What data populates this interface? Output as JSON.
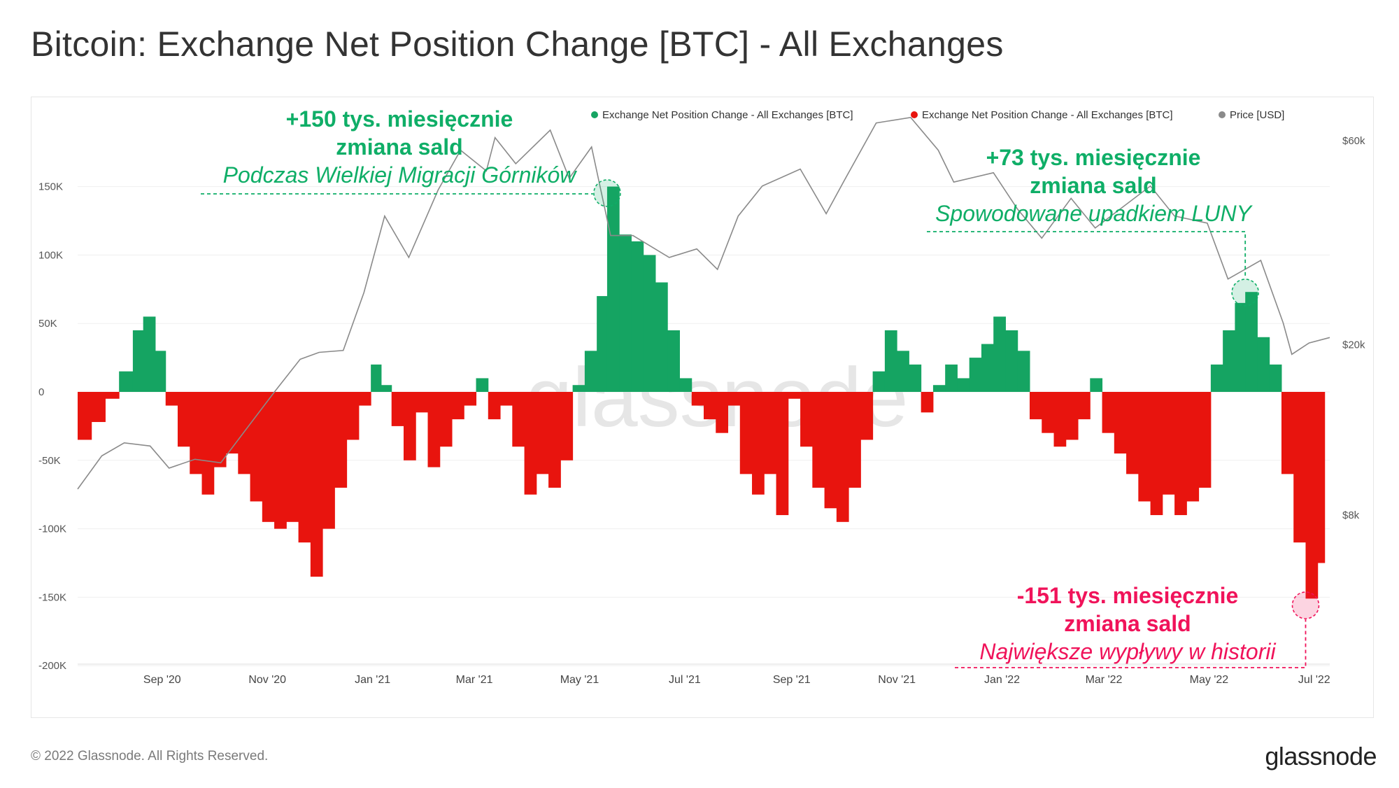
{
  "title": "Bitcoin: Exchange Net Position Change [BTC] - All Exchanges",
  "footer": {
    "copyright": "© 2022 Glassnode. All Rights Reserved.",
    "brand": "glassnode"
  },
  "watermark": "glassnode",
  "colors": {
    "positive": "#15a462",
    "negative": "#e8140e",
    "price": "#8a8a8a",
    "annot_green": "#0fae67",
    "annot_pink": "#f0135a"
  },
  "chart_data": {
    "type": "bar",
    "legend": [
      {
        "label": "Exchange Net Position Change - All Exchanges [BTC]",
        "color": "#15a462"
      },
      {
        "label": "Exchange Net Position Change - All Exchanges [BTC]",
        "color": "#e8140e"
      },
      {
        "label": "Price [USD]",
        "color": "#8a8a8a"
      }
    ],
    "legend_position": "top-right",
    "y_left": {
      "ticks": [
        "150K",
        "100K",
        "50K",
        "0",
        "-50K",
        "-100K",
        "-150K",
        "-200K"
      ],
      "values": [
        150000,
        100000,
        50000,
        0,
        -50000,
        -100000,
        -150000,
        -200000
      ],
      "range": [
        -200000,
        200000
      ]
    },
    "y_right": {
      "ticks": [
        "$60k",
        "$20k",
        "$8k"
      ],
      "values": [
        60000,
        20000,
        8000
      ],
      "scale": "log"
    },
    "x_ticks": [
      "Sep '20",
      "Nov '20",
      "Jan '21",
      "Mar '21",
      "May '21",
      "Jul '21",
      "Sep '21",
      "Nov '21",
      "Jan '22",
      "Mar '22",
      "May '22",
      "Jul '22"
    ],
    "x_range": [
      "2020-07-14",
      "2022-07-10"
    ],
    "series": [
      {
        "name": "Exchange Net Position Change - All Exchanges [BTC]",
        "type": "bar",
        "points": [
          [
            "2020-07-14",
            -35000
          ],
          [
            "2020-07-22",
            -22000
          ],
          [
            "2020-07-30",
            -5000
          ],
          [
            "2020-08-07",
            15000
          ],
          [
            "2020-08-15",
            45000
          ],
          [
            "2020-08-21",
            55000
          ],
          [
            "2020-08-28",
            30000
          ],
          [
            "2020-09-03",
            -10000
          ],
          [
            "2020-09-10",
            -40000
          ],
          [
            "2020-09-17",
            -60000
          ],
          [
            "2020-09-24",
            -75000
          ],
          [
            "2020-10-01",
            -55000
          ],
          [
            "2020-10-08",
            -45000
          ],
          [
            "2020-10-15",
            -60000
          ],
          [
            "2020-10-22",
            -80000
          ],
          [
            "2020-10-29",
            -95000
          ],
          [
            "2020-11-05",
            -100000
          ],
          [
            "2020-11-12",
            -95000
          ],
          [
            "2020-11-19",
            -110000
          ],
          [
            "2020-11-26",
            -135000
          ],
          [
            "2020-12-03",
            -100000
          ],
          [
            "2020-12-10",
            -70000
          ],
          [
            "2020-12-17",
            -35000
          ],
          [
            "2020-12-24",
            -10000
          ],
          [
            "2020-12-31",
            20000
          ],
          [
            "2021-01-06",
            5000
          ],
          [
            "2021-01-12",
            -25000
          ],
          [
            "2021-01-19",
            -50000
          ],
          [
            "2021-01-26",
            -15000
          ],
          [
            "2021-02-02",
            -55000
          ],
          [
            "2021-02-09",
            -40000
          ],
          [
            "2021-02-16",
            -20000
          ],
          [
            "2021-02-23",
            -10000
          ],
          [
            "2021-03-02",
            10000
          ],
          [
            "2021-03-09",
            -20000
          ],
          [
            "2021-03-16",
            -10000
          ],
          [
            "2021-03-23",
            -40000
          ],
          [
            "2021-03-30",
            -75000
          ],
          [
            "2021-04-06",
            -60000
          ],
          [
            "2021-04-13",
            -70000
          ],
          [
            "2021-04-20",
            -50000
          ],
          [
            "2021-04-27",
            5000
          ],
          [
            "2021-05-04",
            30000
          ],
          [
            "2021-05-11",
            70000
          ],
          [
            "2021-05-17",
            150000
          ],
          [
            "2021-05-24",
            115000
          ],
          [
            "2021-05-31",
            110000
          ],
          [
            "2021-06-07",
            100000
          ],
          [
            "2021-06-14",
            80000
          ],
          [
            "2021-06-21",
            45000
          ],
          [
            "2021-06-28",
            10000
          ],
          [
            "2021-07-05",
            -10000
          ],
          [
            "2021-07-12",
            -20000
          ],
          [
            "2021-07-19",
            -30000
          ],
          [
            "2021-07-26",
            -10000
          ],
          [
            "2021-08-02",
            -60000
          ],
          [
            "2021-08-09",
            -75000
          ],
          [
            "2021-08-16",
            -60000
          ],
          [
            "2021-08-23",
            -90000
          ],
          [
            "2021-08-30",
            -5000
          ],
          [
            "2021-09-06",
            -40000
          ],
          [
            "2021-09-13",
            -70000
          ],
          [
            "2021-09-20",
            -85000
          ],
          [
            "2021-09-27",
            -95000
          ],
          [
            "2021-10-04",
            -70000
          ],
          [
            "2021-10-11",
            -35000
          ],
          [
            "2021-10-18",
            15000
          ],
          [
            "2021-10-25",
            45000
          ],
          [
            "2021-11-01",
            30000
          ],
          [
            "2021-11-08",
            20000
          ],
          [
            "2021-11-15",
            -15000
          ],
          [
            "2021-11-22",
            5000
          ],
          [
            "2021-11-29",
            20000
          ],
          [
            "2021-12-06",
            10000
          ],
          [
            "2021-12-13",
            25000
          ],
          [
            "2021-12-20",
            35000
          ],
          [
            "2021-12-27",
            55000
          ],
          [
            "2022-01-03",
            45000
          ],
          [
            "2022-01-10",
            30000
          ],
          [
            "2022-01-17",
            -20000
          ],
          [
            "2022-01-24",
            -30000
          ],
          [
            "2022-01-31",
            -40000
          ],
          [
            "2022-02-07",
            -35000
          ],
          [
            "2022-02-14",
            -20000
          ],
          [
            "2022-02-21",
            10000
          ],
          [
            "2022-02-28",
            -30000
          ],
          [
            "2022-03-07",
            -45000
          ],
          [
            "2022-03-14",
            -60000
          ],
          [
            "2022-03-21",
            -80000
          ],
          [
            "2022-03-28",
            -90000
          ],
          [
            "2022-04-04",
            -75000
          ],
          [
            "2022-04-11",
            -90000
          ],
          [
            "2022-04-18",
            -80000
          ],
          [
            "2022-04-25",
            -70000
          ],
          [
            "2022-05-02",
            20000
          ],
          [
            "2022-05-09",
            45000
          ],
          [
            "2022-05-16",
            65000
          ],
          [
            "2022-05-22",
            73000
          ],
          [
            "2022-05-29",
            40000
          ],
          [
            "2022-06-05",
            20000
          ],
          [
            "2022-06-12",
            -60000
          ],
          [
            "2022-06-19",
            -110000
          ],
          [
            "2022-06-26",
            -151000
          ],
          [
            "2022-07-03",
            -125000
          ]
        ]
      },
      {
        "name": "Price [USD]",
        "type": "line",
        "points": [
          [
            "2020-07-14",
            9200
          ],
          [
            "2020-07-28",
            11000
          ],
          [
            "2020-08-10",
            11800
          ],
          [
            "2020-08-25",
            11600
          ],
          [
            "2020-09-05",
            10300
          ],
          [
            "2020-09-20",
            10800
          ],
          [
            "2020-10-05",
            10600
          ],
          [
            "2020-10-21",
            12900
          ],
          [
            "2020-11-05",
            15500
          ],
          [
            "2020-11-20",
            18500
          ],
          [
            "2020-12-01",
            19200
          ],
          [
            "2020-12-15",
            19400
          ],
          [
            "2020-12-27",
            26500
          ],
          [
            "2021-01-08",
            40000
          ],
          [
            "2021-01-22",
            32000
          ],
          [
            "2021-02-08",
            46000
          ],
          [
            "2021-02-21",
            57000
          ],
          [
            "2021-03-08",
            51000
          ],
          [
            "2021-03-13",
            61000
          ],
          [
            "2021-03-25",
            53000
          ],
          [
            "2021-04-14",
            63500
          ],
          [
            "2021-04-25",
            49000
          ],
          [
            "2021-05-08",
            58000
          ],
          [
            "2021-05-19",
            36000
          ],
          [
            "2021-06-01",
            36000
          ],
          [
            "2021-06-22",
            32000
          ],
          [
            "2021-07-08",
            33500
          ],
          [
            "2021-07-20",
            30000
          ],
          [
            "2021-08-01",
            40000
          ],
          [
            "2021-08-15",
            47000
          ],
          [
            "2021-09-06",
            51500
          ],
          [
            "2021-09-21",
            40500
          ],
          [
            "2021-10-01",
            48000
          ],
          [
            "2021-10-20",
            66000
          ],
          [
            "2021-11-09",
            68000
          ],
          [
            "2021-11-25",
            57000
          ],
          [
            "2021-12-04",
            48000
          ],
          [
            "2021-12-27",
            50500
          ],
          [
            "2022-01-10",
            41500
          ],
          [
            "2022-01-24",
            35500
          ],
          [
            "2022-02-10",
            44000
          ],
          [
            "2022-02-24",
            37500
          ],
          [
            "2022-03-28",
            47000
          ],
          [
            "2022-04-11",
            40000
          ],
          [
            "2022-04-30",
            38500
          ],
          [
            "2022-05-12",
            28500
          ],
          [
            "2022-05-31",
            31500
          ],
          [
            "2022-06-13",
            22500
          ],
          [
            "2022-06-18",
            19000
          ],
          [
            "2022-06-28",
            20200
          ],
          [
            "2022-07-10",
            20800
          ]
        ]
      }
    ],
    "annotations": [
      {
        "id": "a1",
        "line1": "+150 tys. miesięcznie",
        "line2": "zmiana sald",
        "line3": "Podczas Wielkiej Migracji Górników",
        "date": "2021-05-17",
        "value": 150000,
        "color": "#0fae67"
      },
      {
        "id": "a2",
        "line1": "+73 tys. miesięcznie",
        "line2": "zmiana sald",
        "line3": "Spowodowane upadkiem LUNY",
        "date": "2022-05-22",
        "value": 73000,
        "color": "#0fae67"
      },
      {
        "id": "a3",
        "line1": "-151 tys. miesięcznie",
        "line2": "zmiana sald",
        "line3": "Największe wypływy w historii",
        "date": "2022-06-26",
        "value": -151000,
        "color": "#f0135a"
      }
    ]
  }
}
